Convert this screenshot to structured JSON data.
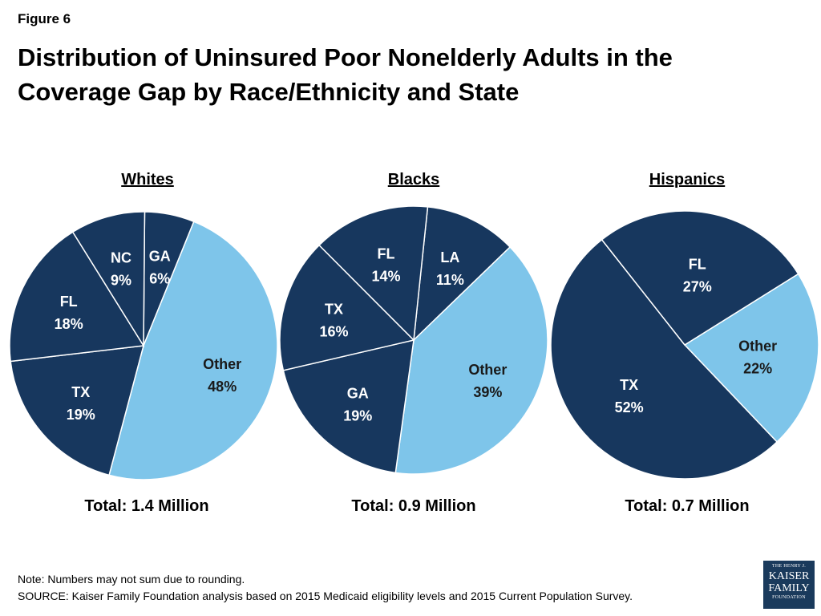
{
  "figure_label": "Figure 6",
  "title_lines": [
    "Distribution of Uninsured Poor Nonelderly Adults in the",
    "Coverage Gap by Race/Ethnicity and State"
  ],
  "colors": {
    "dark": "#17375e",
    "light": "#7ec5ea",
    "divider": "#ffffff"
  },
  "chart_data": [
    {
      "type": "pie",
      "title": "Whites",
      "total_label": "Total: 1.4 Million",
      "slices": [
        {
          "label": "GA",
          "value": 6,
          "value_label": "6%",
          "color": "#17375e"
        },
        {
          "label": "Other",
          "value": 48,
          "value_label": "48%",
          "color": "#7ec5ea"
        },
        {
          "label": "TX",
          "value": 19,
          "value_label": "19%",
          "color": "#17375e"
        },
        {
          "label": "FL",
          "value": 18,
          "value_label": "18%",
          "color": "#17375e"
        },
        {
          "label": "NC",
          "value": 9,
          "value_label": "9%",
          "color": "#17375e"
        }
      ]
    },
    {
      "type": "pie",
      "title": "Blacks",
      "total_label": "Total: 0.9 Million",
      "slices": [
        {
          "label": "LA",
          "value": 11,
          "value_label": "11%",
          "color": "#17375e"
        },
        {
          "label": "Other",
          "value": 39,
          "value_label": "39%",
          "color": "#7ec5ea"
        },
        {
          "label": "GA",
          "value": 19,
          "value_label": "19%",
          "color": "#17375e"
        },
        {
          "label": "TX",
          "value": 16,
          "value_label": "16%",
          "color": "#17375e"
        },
        {
          "label": "FL",
          "value": 14,
          "value_label": "14%",
          "color": "#17375e"
        }
      ]
    },
    {
      "type": "pie",
      "title": "Hispanics",
      "total_label": "Total: 0.7 Million",
      "slices": [
        {
          "label": "Other",
          "value": 22,
          "value_label": "22%",
          "color": "#7ec5ea"
        },
        {
          "label": "TX",
          "value": 52,
          "value_label": "52%",
          "color": "#17375e"
        },
        {
          "label": "FL",
          "value": 27,
          "value_label": "27%",
          "color": "#17375e"
        }
      ]
    }
  ],
  "note": "Note: Numbers may not sum due to rounding.",
  "source": "SOURCE: Kaiser Family Foundation analysis based on 2015 Medicaid eligibility levels and 2015 Current Population Survey.",
  "logo": {
    "line1": "THE HENRY J.",
    "line2": "KAISER",
    "line3": "FAMILY",
    "line4": "FOUNDATION"
  }
}
